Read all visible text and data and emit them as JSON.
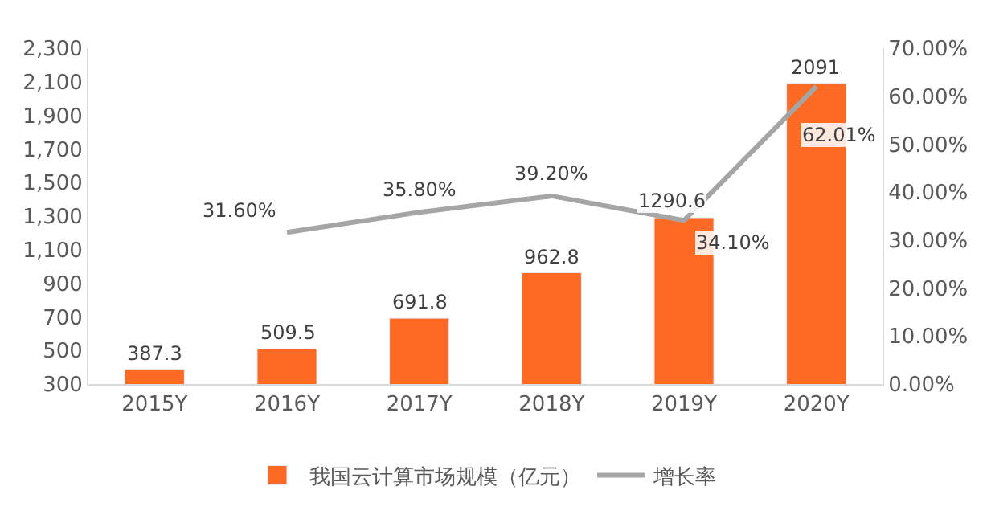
{
  "chart_data": {
    "type": "bar",
    "categories": [
      "2015Y",
      "2016Y",
      "2017Y",
      "2018Y",
      "2019Y",
      "2020Y"
    ],
    "series": [
      {
        "name": "我国云计算市场规模（亿元）",
        "color": "#fd6a23",
        "values": [
          387.3,
          509.5,
          691.8,
          962.8,
          1290.6,
          2091
        ],
        "value_labels": [
          "387.3",
          "509.5",
          "691.8",
          "962.8",
          "1290.6",
          "2091"
        ]
      },
      {
        "name": "增长率",
        "type": "line",
        "axis": "y2",
        "color": "#a5a5a5",
        "values": [
          null,
          31.6,
          35.8,
          39.2,
          34.1,
          62.01
        ],
        "value_labels": [
          null,
          "31.60%",
          "35.80%",
          "39.20%",
          "34.10%",
          "62.01%"
        ]
      }
    ],
    "ylim": [
      300,
      2300
    ],
    "yticks": [
      {
        "value": 300,
        "label": "300"
      },
      {
        "value": 500,
        "label": "500"
      },
      {
        "value": 700,
        "label": "700"
      },
      {
        "value": 900,
        "label": "900"
      },
      {
        "value": 1100,
        "label": "1,100"
      },
      {
        "value": 1300,
        "label": "1,300"
      },
      {
        "value": 1500,
        "label": "1,500"
      },
      {
        "value": 1700,
        "label": "1,700"
      },
      {
        "value": 1900,
        "label": "1,900"
      },
      {
        "value": 2100,
        "label": "2,100"
      },
      {
        "value": 2300,
        "label": "2,300"
      }
    ],
    "y2lim": [
      0,
      70
    ],
    "y2ticks": [
      {
        "value": 0,
        "label": "0.00%"
      },
      {
        "value": 10,
        "label": "10.00%"
      },
      {
        "value": 20,
        "label": "20.00%"
      },
      {
        "value": 30,
        "label": "30.00%"
      },
      {
        "value": 40,
        "label": "40.00%"
      },
      {
        "value": 50,
        "label": "50.00%"
      },
      {
        "value": 60,
        "label": "60.00%"
      },
      {
        "value": 70,
        "label": "70.00%"
      }
    ],
    "legend": "bottom",
    "grid": false,
    "marker": "none",
    "line_style": "solid"
  }
}
